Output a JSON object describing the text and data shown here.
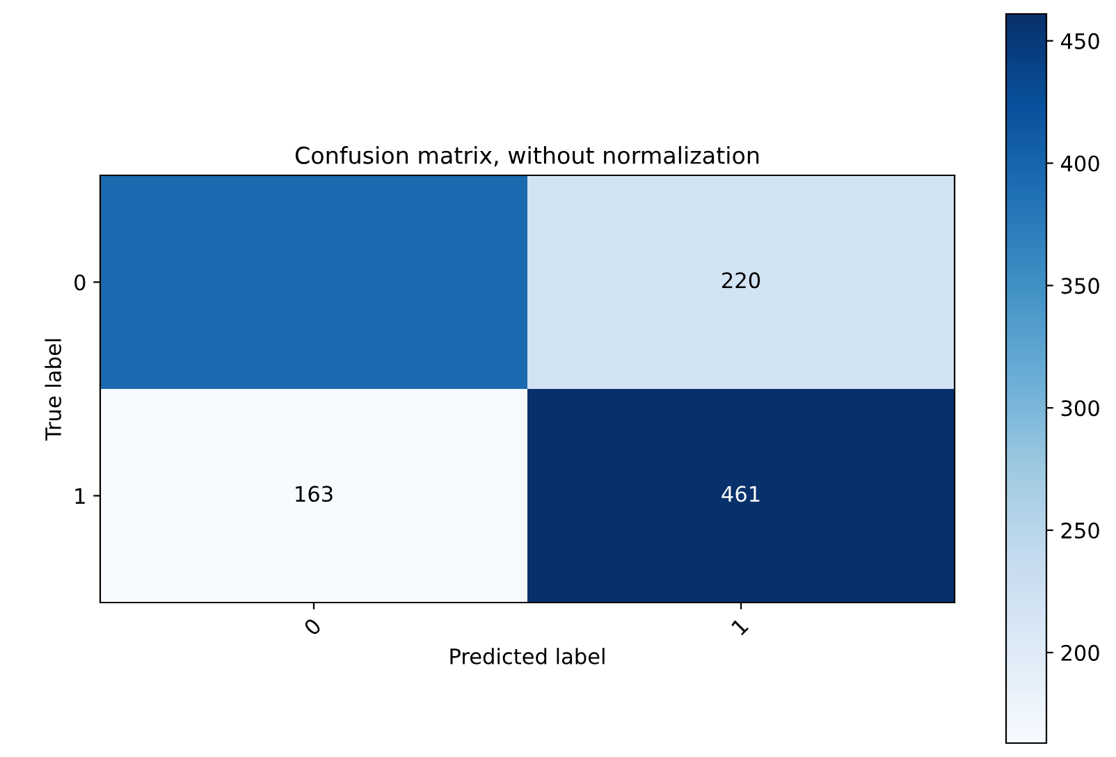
{
  "chart_data": {
    "type": "heatmap",
    "title": "Confusion matrix, without normalization",
    "xlabel": "Predicted label",
    "ylabel": "True label",
    "categories": [
      "0",
      "1"
    ],
    "y_categories": [
      "0",
      "1"
    ],
    "cells": [
      [
        395,
        220
      ],
      [
        163,
        461
      ]
    ],
    "cell_labels": [
      [
        null,
        "220"
      ],
      [
        "163",
        "461"
      ]
    ],
    "clim": [
      163,
      461
    ],
    "cticks": [
      200,
      250,
      300,
      350,
      400,
      450
    ]
  }
}
